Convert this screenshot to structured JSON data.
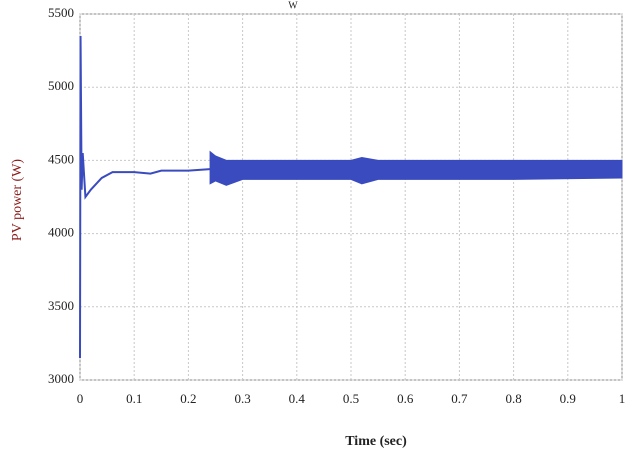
{
  "chart_data": {
    "type": "line",
    "title": "W",
    "xlabel": "Time (sec)",
    "ylabel": "PV power (W)",
    "xlim": [
      0,
      1
    ],
    "ylim": [
      3000,
      5500
    ],
    "xticks": [
      0,
      0.1,
      0.2,
      0.3,
      0.4,
      0.5,
      0.6,
      0.7,
      0.8,
      0.9,
      1
    ],
    "yticks": [
      3000,
      3500,
      4000,
      4500,
      5000,
      5500
    ],
    "grid": true,
    "series": [
      {
        "color": "#3a4bbf",
        "x": [
          0,
          0.001,
          0.003,
          0.005,
          0.01,
          0.02,
          0.04,
          0.06,
          0.1,
          0.13,
          0.15,
          0.2,
          0.24
        ],
        "values": [
          3150,
          5350,
          4300,
          4550,
          4250,
          4300,
          4380,
          4420,
          4420,
          4410,
          4430,
          4430,
          4440
        ]
      }
    ],
    "band": {
      "color": "#3a4bbf",
      "x": [
        0.24,
        0.25,
        0.27,
        0.3,
        0.5,
        0.52,
        0.55,
        0.6,
        0.8,
        1
      ],
      "upper": [
        4560,
        4530,
        4500,
        4500,
        4500,
        4520,
        4500,
        4500,
        4500,
        4500
      ],
      "lower": [
        4340,
        4360,
        4330,
        4370,
        4370,
        4340,
        4370,
        4370,
        4370,
        4380
      ]
    }
  }
}
